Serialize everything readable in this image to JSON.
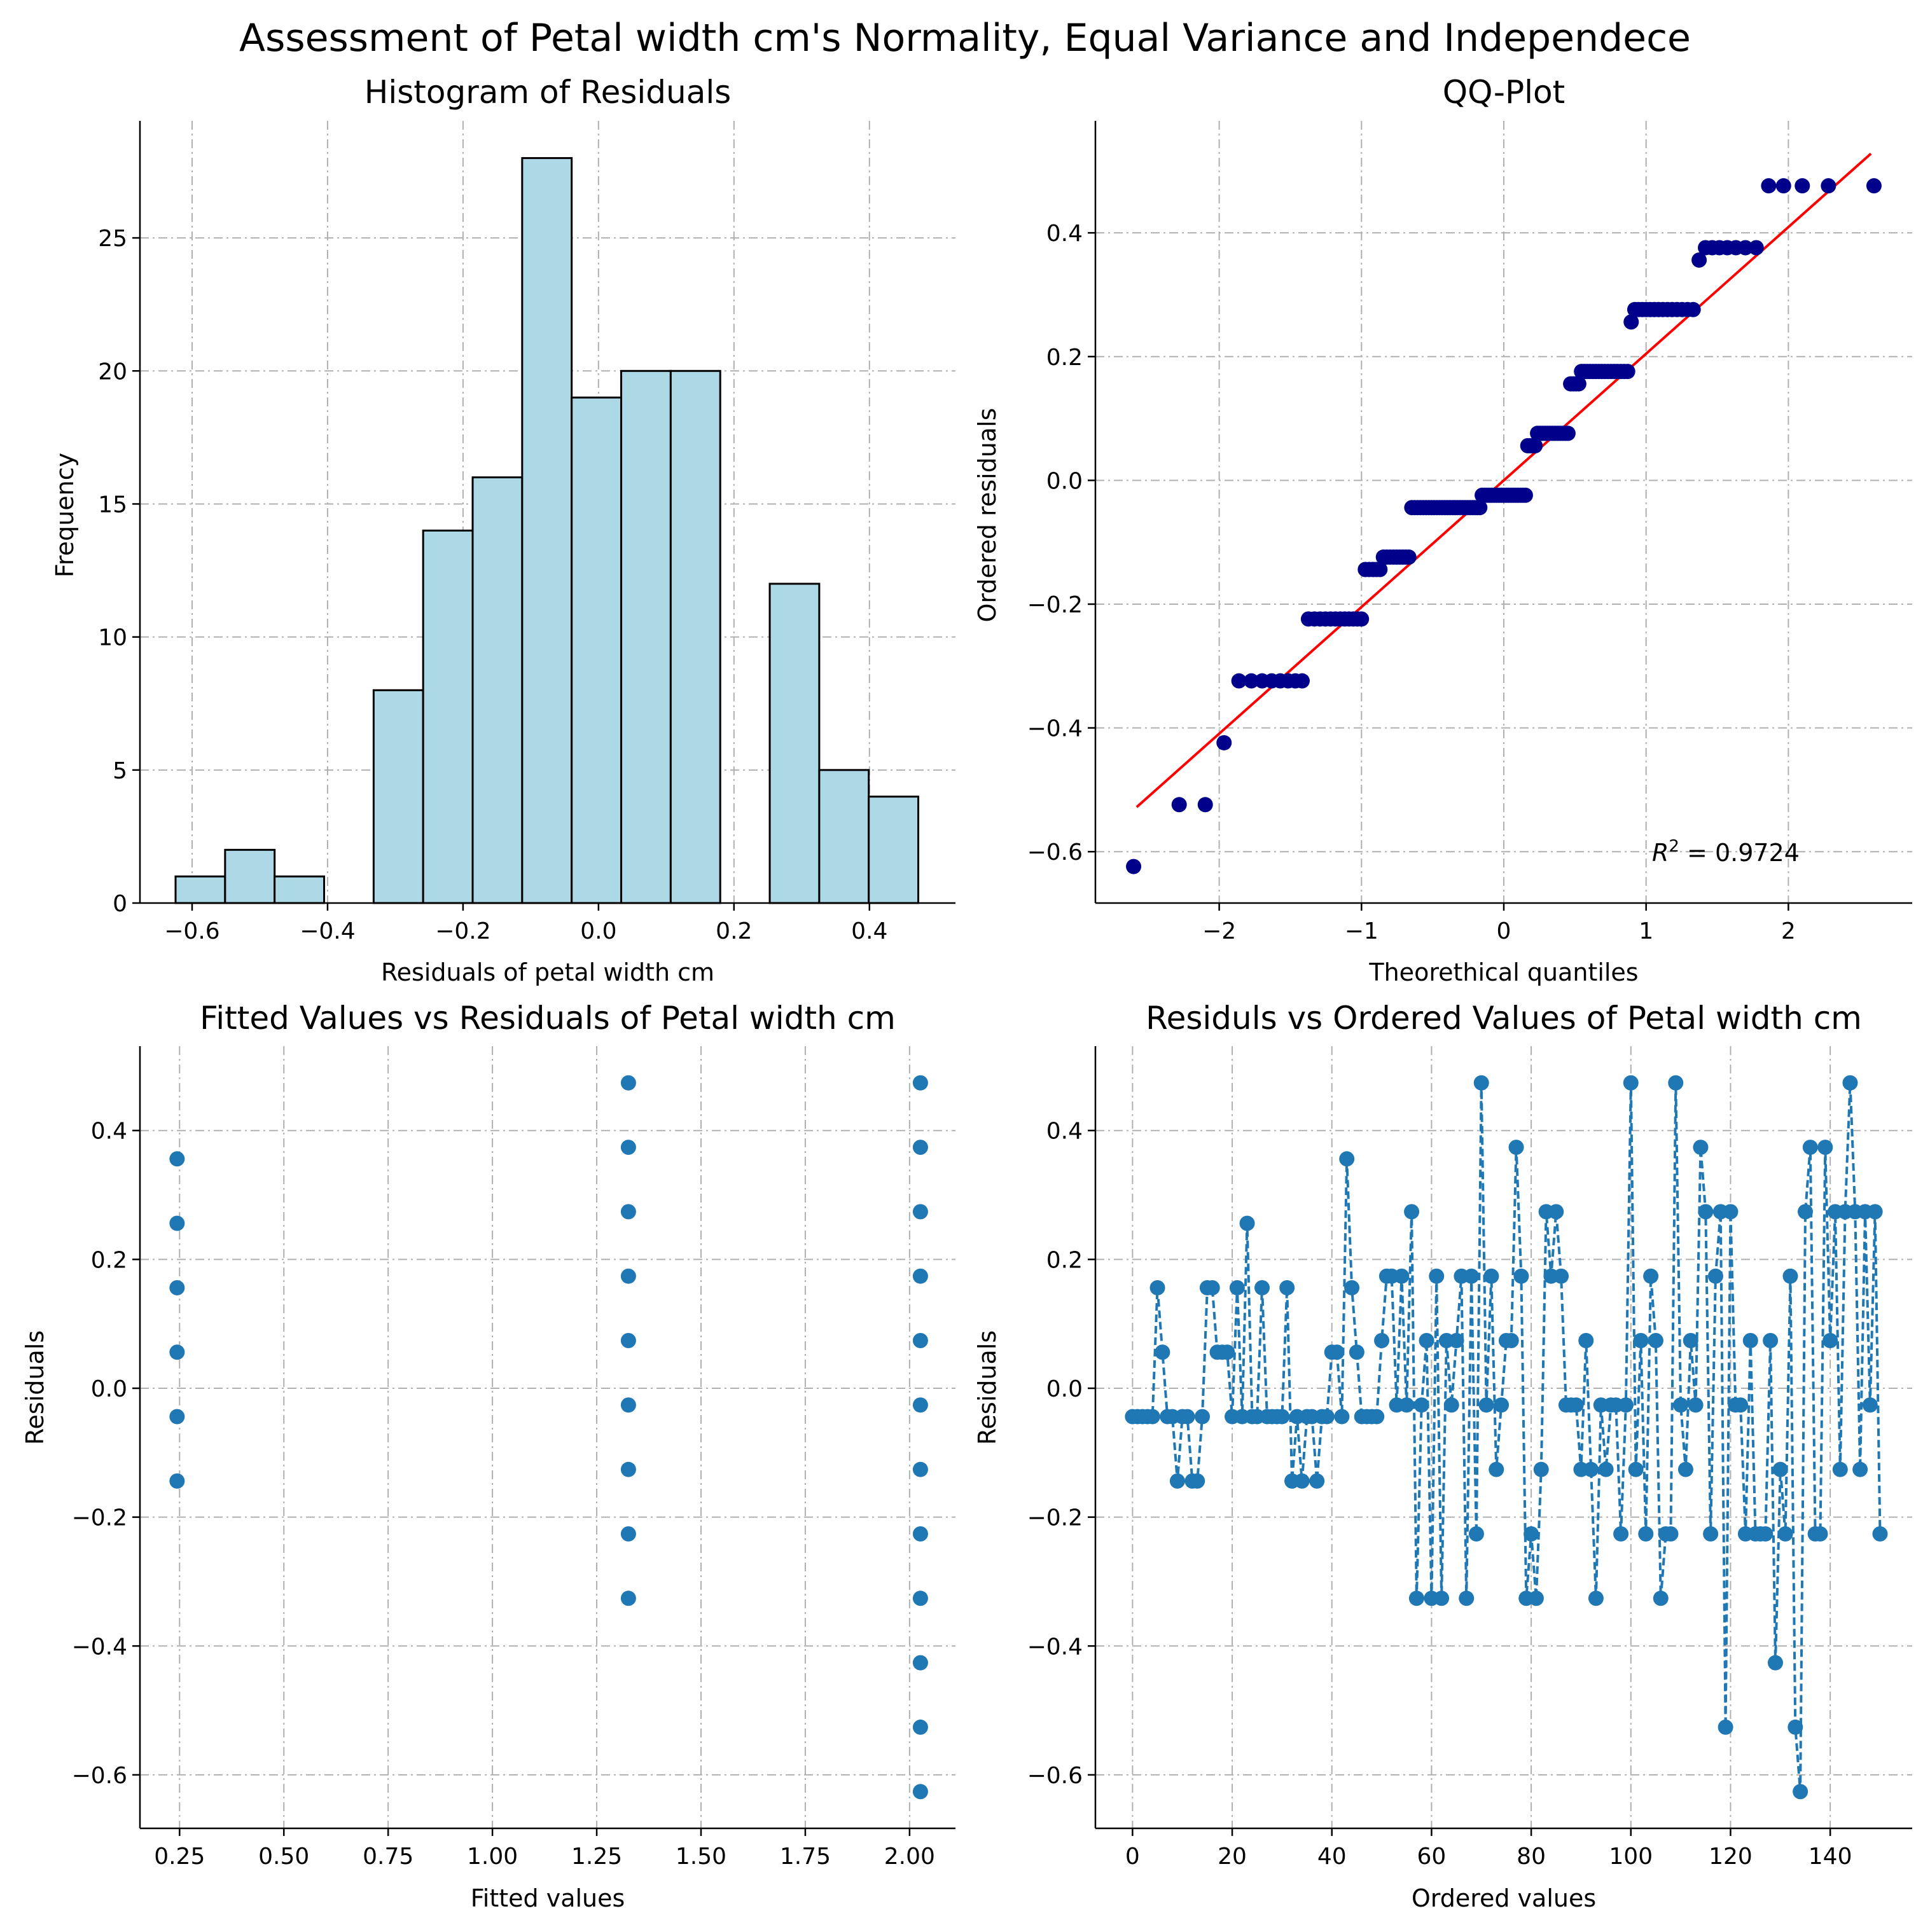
{
  "figure_title": "Assessment of Petal width cm's Normality, Equal Variance and Independece",
  "chart_data": [
    {
      "type": "bar",
      "title": "Histogram of Residuals",
      "xlabel": "Residuals of petal width cm",
      "ylabel": "Frequency",
      "xlim": [
        -0.677,
        0.527
      ],
      "ylim": [
        0,
        29.4
      ],
      "xticks": [
        -0.6,
        -0.4,
        -0.2,
        0.0,
        0.2,
        0.4
      ],
      "xtick_labels": [
        "−0.6",
        "−0.4",
        "−0.2",
        "0.0",
        "0.2",
        "0.4"
      ],
      "yticks": [
        0,
        5,
        10,
        15,
        20,
        25
      ],
      "ytick_labels": [
        "0",
        "5",
        "10",
        "15",
        "20",
        "25"
      ],
      "grid": true,
      "bin_edges": [
        -0.6244,
        -0.5513,
        -0.4782,
        -0.4051,
        -0.332,
        -0.2589,
        -0.1858,
        -0.1127,
        -0.0396,
        0.0335,
        0.1066,
        0.1797,
        0.2528,
        0.3259,
        0.399,
        0.4721
      ],
      "values": [
        1,
        2,
        1,
        0,
        8,
        14,
        16,
        28,
        19,
        20,
        20,
        0,
        12,
        5,
        4
      ],
      "colors": {
        "fill": "#add8e6",
        "edge": "#000000"
      }
    },
    {
      "type": "scatter",
      "title": "QQ-Plot",
      "xlabel": "Theorethical quantiles",
      "ylabel": "Ordered residuals",
      "xlim": [
        -2.87,
        2.87
      ],
      "ylim": [
        -0.683,
        0.581
      ],
      "xticks": [
        -2,
        -1,
        0,
        1,
        2
      ],
      "xtick_labels": [
        "−2",
        "−1",
        "0",
        "1",
        "2"
      ],
      "yticks": [
        -0.6,
        -0.4,
        -0.2,
        0.0,
        0.2,
        0.4
      ],
      "ytick_labels": [
        "−0.6",
        "−0.4",
        "−0.2",
        "0.0",
        "0.2",
        "0.4"
      ],
      "grid": true,
      "annotation": "R² = 0.9724",
      "annotation_text": "R",
      "annotation_sup": "2",
      "annotation_rest": " = 0.9724",
      "fit_line": {
        "x": [
          -2.58,
          2.58
        ],
        "y": [
          -0.528,
          0.528
        ]
      },
      "sorted_residuals": [
        -0.624,
        -0.524,
        -0.524,
        -0.424,
        -0.324,
        -0.324,
        -0.324,
        -0.324,
        -0.324,
        -0.324,
        -0.324,
        -0.324,
        -0.224,
        -0.224,
        -0.224,
        -0.224,
        -0.224,
        -0.224,
        -0.224,
        -0.224,
        -0.224,
        -0.224,
        -0.224,
        -0.224,
        -0.144,
        -0.144,
        -0.144,
        -0.144,
        -0.144,
        -0.124,
        -0.124,
        -0.124,
        -0.124,
        -0.124,
        -0.124,
        -0.124,
        -0.124,
        -0.124,
        -0.044,
        -0.044,
        -0.044,
        -0.044,
        -0.044,
        -0.044,
        -0.044,
        -0.044,
        -0.044,
        -0.044,
        -0.044,
        -0.044,
        -0.044,
        -0.044,
        -0.044,
        -0.044,
        -0.044,
        -0.044,
        -0.044,
        -0.044,
        -0.044,
        -0.044,
        -0.044,
        -0.044,
        -0.044,
        -0.044,
        -0.044,
        -0.024,
        -0.024,
        -0.024,
        -0.024,
        -0.024,
        -0.024,
        -0.024,
        -0.024,
        -0.024,
        -0.024,
        -0.024,
        -0.024,
        -0.024,
        -0.024,
        -0.024,
        -0.024,
        -0.024,
        -0.024,
        -0.024,
        0.056,
        0.056,
        0.056,
        0.056,
        0.076,
        0.076,
        0.076,
        0.076,
        0.076,
        0.076,
        0.076,
        0.076,
        0.076,
        0.076,
        0.076,
        0.076,
        0.076,
        0.156,
        0.156,
        0.156,
        0.156,
        0.176,
        0.176,
        0.176,
        0.176,
        0.176,
        0.176,
        0.176,
        0.176,
        0.176,
        0.176,
        0.176,
        0.176,
        0.176,
        0.176,
        0.176,
        0.176,
        0.256,
        0.276,
        0.276,
        0.276,
        0.276,
        0.276,
        0.276,
        0.276,
        0.276,
        0.276,
        0.276,
        0.276,
        0.276,
        0.276,
        0.276,
        0.356,
        0.376,
        0.376,
        0.376,
        0.376,
        0.376,
        0.376,
        0.376,
        0.476,
        0.476,
        0.476,
        0.476,
        0.476
      ],
      "colors": {
        "points": "#00008b",
        "line": "#ff0000"
      }
    },
    {
      "type": "scatter",
      "title": "Fitted Values vs Residuals of Petal width cm",
      "xlabel": "Fitted values",
      "ylabel": "Residuals",
      "xlim": [
        0.155,
        2.11
      ],
      "ylim": [
        -0.683,
        0.531
      ],
      "xticks": [
        0.25,
        0.5,
        0.75,
        1.0,
        1.25,
        1.5,
        1.75,
        2.0
      ],
      "xtick_labels": [
        "0.25",
        "0.50",
        "0.75",
        "1.00",
        "1.25",
        "1.50",
        "1.75",
        "2.00"
      ],
      "yticks": [
        -0.6,
        -0.4,
        -0.2,
        0.0,
        0.2,
        0.4
      ],
      "ytick_labels": [
        "−0.6",
        "−0.4",
        "−0.2",
        "0.0",
        "0.2",
        "0.4"
      ],
      "grid": true,
      "points": [
        [
          0.244,
          0.356
        ],
        [
          0.244,
          0.256
        ],
        [
          0.244,
          0.156
        ],
        [
          0.244,
          0.056
        ],
        [
          0.244,
          -0.044
        ],
        [
          0.244,
          -0.144
        ],
        [
          1.326,
          0.474
        ],
        [
          1.326,
          0.374
        ],
        [
          1.326,
          0.274
        ],
        [
          1.326,
          0.174
        ],
        [
          1.326,
          0.074
        ],
        [
          1.326,
          -0.026
        ],
        [
          1.326,
          -0.126
        ],
        [
          1.326,
          -0.226
        ],
        [
          1.326,
          -0.326
        ],
        [
          2.026,
          0.474
        ],
        [
          2.026,
          0.374
        ],
        [
          2.026,
          0.274
        ],
        [
          2.026,
          0.174
        ],
        [
          2.026,
          0.074
        ],
        [
          2.026,
          -0.026
        ],
        [
          2.026,
          -0.126
        ],
        [
          2.026,
          -0.226
        ],
        [
          2.026,
          -0.326
        ],
        [
          2.026,
          -0.426
        ],
        [
          2.026,
          -0.526
        ],
        [
          2.026,
          -0.626
        ]
      ],
      "colors": {
        "points": "#1f77b4"
      }
    },
    {
      "type": "line",
      "title": "Residuls vs Ordered Values of Petal width cm",
      "xlabel": "Ordered values",
      "ylabel": "Residuals",
      "xlim": [
        -7.45,
        156.45
      ],
      "ylim": [
        -0.683,
        0.531
      ],
      "xticks": [
        0,
        20,
        40,
        60,
        80,
        100,
        120,
        140
      ],
      "xtick_labels": [
        "0",
        "20",
        "40",
        "60",
        "80",
        "100",
        "120",
        "140"
      ],
      "yticks": [
        -0.6,
        -0.4,
        -0.2,
        0.0,
        0.2,
        0.4
      ],
      "ytick_labels": [
        "−0.6",
        "−0.4",
        "−0.2",
        "0.0",
        "0.2",
        "0.4"
      ],
      "grid": true,
      "line_style": "dashed",
      "marker": "circle",
      "y": [
        -0.044,
        -0.044,
        -0.044,
        -0.044,
        -0.044,
        0.156,
        0.056,
        -0.044,
        -0.044,
        -0.144,
        -0.044,
        -0.044,
        -0.144,
        -0.144,
        -0.044,
        0.156,
        0.156,
        0.056,
        0.056,
        0.056,
        -0.044,
        0.156,
        -0.044,
        0.256,
        -0.044,
        -0.044,
        0.156,
        -0.044,
        -0.044,
        -0.044,
        -0.044,
        0.156,
        -0.144,
        -0.044,
        -0.144,
        -0.044,
        -0.044,
        -0.144,
        -0.044,
        -0.044,
        0.056,
        0.056,
        -0.044,
        0.356,
        0.156,
        0.056,
        -0.044,
        -0.044,
        -0.044,
        -0.044,
        0.074,
        0.174,
        0.174,
        -0.026,
        0.174,
        -0.026,
        0.274,
        -0.326,
        -0.026,
        0.074,
        -0.326,
        0.174,
        -0.326,
        0.074,
        -0.026,
        0.074,
        0.174,
        -0.326,
        0.174,
        -0.226,
        0.474,
        -0.026,
        0.174,
        -0.126,
        -0.026,
        0.074,
        0.074,
        0.374,
        0.174,
        -0.326,
        -0.226,
        -0.326,
        -0.126,
        0.274,
        0.174,
        0.274,
        0.174,
        -0.026,
        -0.026,
        -0.026,
        -0.126,
        0.074,
        -0.126,
        -0.326,
        -0.026,
        -0.126,
        -0.026,
        -0.026,
        -0.226,
        -0.026,
        0.474,
        -0.126,
        0.074,
        -0.226,
        0.174,
        0.074,
        -0.326,
        -0.226,
        -0.226,
        0.474,
        -0.026,
        -0.126,
        0.074,
        -0.026,
        0.374,
        0.274,
        -0.226,
        0.174,
        0.274,
        -0.526,
        0.274,
        -0.026,
        -0.026,
        -0.226,
        0.074,
        -0.226,
        -0.226,
        -0.226,
        0.074,
        -0.426,
        -0.126,
        -0.226,
        0.174,
        -0.526,
        -0.626,
        0.274,
        0.374,
        -0.226,
        -0.226,
        0.374,
        0.074,
        0.274,
        -0.126,
        0.274,
        0.474,
        0.274,
        -0.126,
        0.274,
        -0.026,
        0.274,
        -0.226
      ],
      "colors": {
        "line": "#1f77b4",
        "points": "#1f77b4"
      }
    }
  ]
}
